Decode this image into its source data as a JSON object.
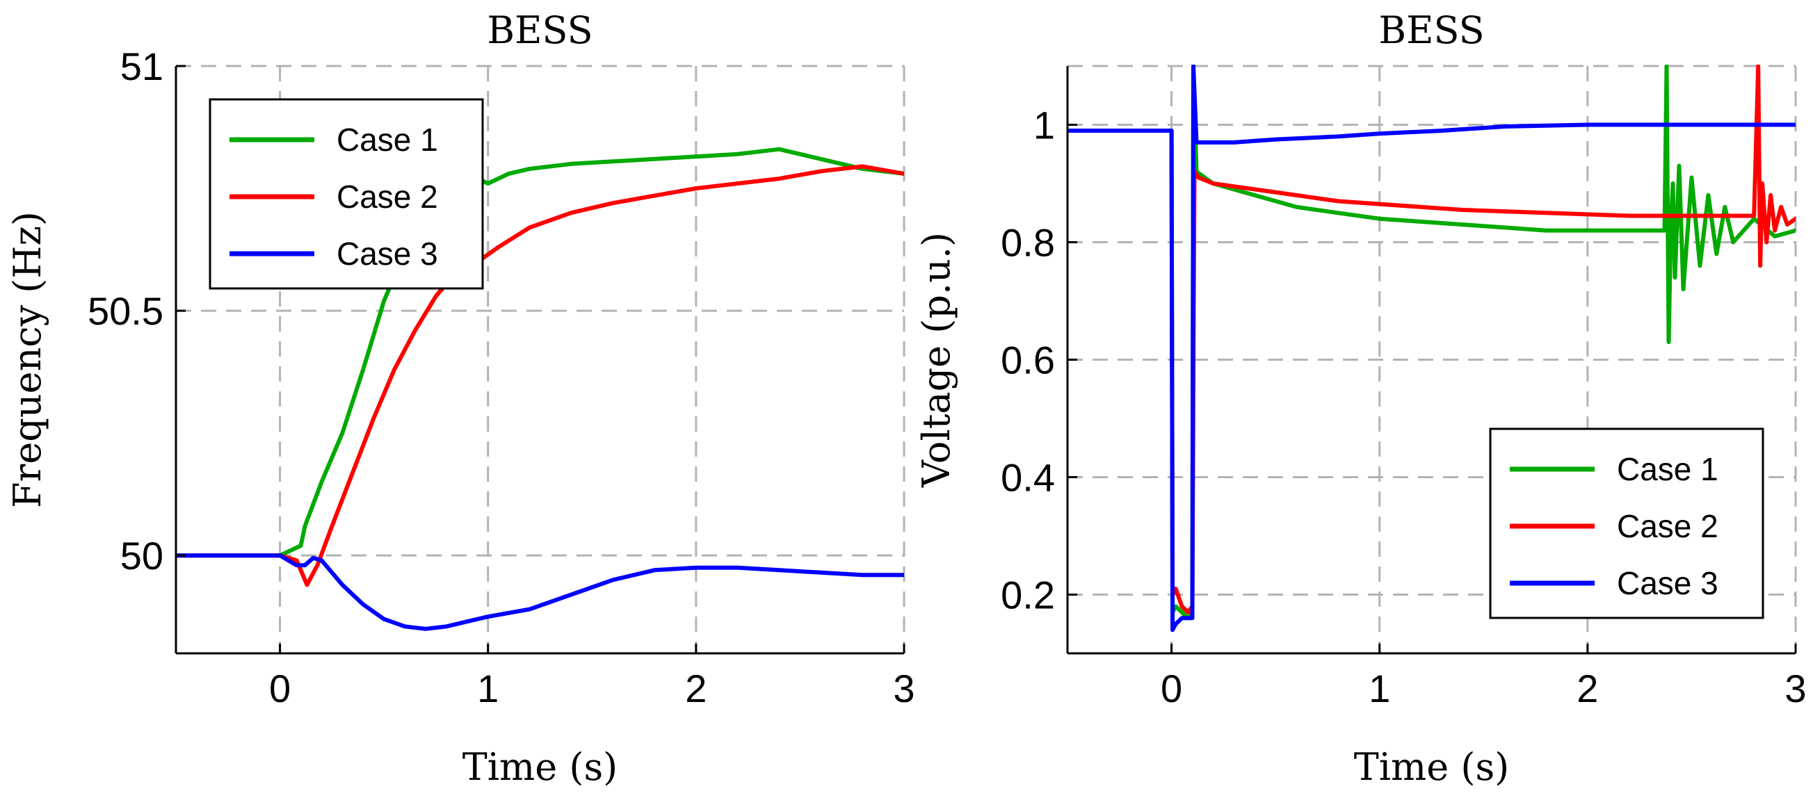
{
  "colors": {
    "case1": "#00aa00",
    "case2": "#ff0000",
    "case3": "#0000ff"
  },
  "chart_data": [
    {
      "type": "line",
      "title": "BESS",
      "xlabel": "Time (s)",
      "ylabel": "Frequency (Hz)",
      "xlim": [
        -0.5,
        3
      ],
      "ylim": [
        49.8,
        51
      ],
      "xticks": [
        0,
        1,
        2,
        3
      ],
      "xtick_labels": [
        "0",
        "1",
        "2",
        "3"
      ],
      "yticks": [
        50,
        50.5,
        51
      ],
      "ytick_labels": [
        "50",
        "50.5",
        "51"
      ],
      "legend_position": "top-left",
      "series": [
        {
          "name": "Case 1",
          "color": "#00aa00",
          "x": [
            -0.5,
            0,
            0.1,
            0.12,
            0.2,
            0.3,
            0.4,
            0.5,
            0.6,
            0.7,
            0.8,
            0.9,
            1.0,
            1.1,
            1.2,
            1.4,
            1.6,
            1.8,
            2.0,
            2.2,
            2.4,
            2.6,
            2.8,
            3.0
          ],
          "y": [
            50,
            50,
            50.02,
            50.06,
            50.15,
            50.25,
            50.38,
            50.52,
            50.62,
            50.7,
            50.75,
            50.78,
            50.76,
            50.78,
            50.79,
            50.8,
            50.805,
            50.81,
            50.815,
            50.82,
            50.83,
            50.81,
            50.79,
            50.78
          ]
        },
        {
          "name": "Case 2",
          "color": "#ff0000",
          "x": [
            -0.5,
            0,
            0.08,
            0.13,
            0.18,
            0.25,
            0.35,
            0.45,
            0.55,
            0.65,
            0.75,
            0.85,
            0.95,
            1.05,
            1.2,
            1.4,
            1.6,
            1.8,
            2.0,
            2.2,
            2.4,
            2.6,
            2.8,
            3.0
          ],
          "y": [
            50,
            50,
            49.99,
            49.94,
            49.98,
            50.06,
            50.17,
            50.28,
            50.38,
            50.46,
            50.53,
            50.58,
            50.6,
            50.63,
            50.67,
            50.7,
            50.72,
            50.735,
            50.75,
            50.76,
            50.77,
            50.785,
            50.795,
            50.78
          ]
        },
        {
          "name": "Case 3",
          "color": "#0000ff",
          "x": [
            -0.5,
            0,
            0.08,
            0.12,
            0.16,
            0.2,
            0.3,
            0.4,
            0.5,
            0.6,
            0.7,
            0.8,
            0.9,
            1.0,
            1.2,
            1.4,
            1.6,
            1.8,
            2.0,
            2.2,
            2.4,
            2.6,
            2.8,
            3.0
          ],
          "y": [
            50,
            50,
            49.98,
            49.98,
            49.995,
            49.99,
            49.94,
            49.9,
            49.87,
            49.855,
            49.85,
            49.855,
            49.865,
            49.875,
            49.89,
            49.92,
            49.95,
            49.97,
            49.975,
            49.975,
            49.97,
            49.965,
            49.96,
            49.96
          ]
        }
      ]
    },
    {
      "type": "line",
      "title": "BESS",
      "xlabel": "Time (s)",
      "ylabel": "Voltage (p.u.)",
      "xlim": [
        -0.5,
        3
      ],
      "ylim": [
        0.1,
        1.1
      ],
      "xticks": [
        0,
        1,
        2,
        3
      ],
      "xtick_labels": [
        "0",
        "1",
        "2",
        "3"
      ],
      "yticks": [
        0.2,
        0.4,
        0.6,
        0.8,
        1.0
      ],
      "ytick_labels": [
        "0.2",
        "0.4",
        "0.6",
        "0.8",
        "1"
      ],
      "legend_position": "bottom-right",
      "series": [
        {
          "name": "Case 1",
          "color": "#00aa00",
          "x": [
            -0.5,
            0,
            0.005,
            0.02,
            0.05,
            0.08,
            0.1,
            0.105,
            0.12,
            0.2,
            0.4,
            0.6,
            0.8,
            1.0,
            1.4,
            1.8,
            2.2,
            2.37,
            2.38,
            2.39,
            2.4,
            2.41,
            2.42,
            2.44,
            2.46,
            2.5,
            2.54,
            2.58,
            2.62,
            2.66,
            2.7,
            2.8,
            2.9,
            3.0
          ],
          "y": [
            0.99,
            0.99,
            0.17,
            0.18,
            0.17,
            0.16,
            0.17,
            1.1,
            0.92,
            0.9,
            0.88,
            0.86,
            0.85,
            0.84,
            0.83,
            0.82,
            0.82,
            0.82,
            1.1,
            0.63,
            0.82,
            0.9,
            0.74,
            0.93,
            0.72,
            0.91,
            0.76,
            0.88,
            0.78,
            0.86,
            0.8,
            0.84,
            0.81,
            0.82
          ]
        },
        {
          "name": "Case 2",
          "color": "#ff0000",
          "x": [
            -0.5,
            0,
            0.005,
            0.02,
            0.05,
            0.08,
            0.1,
            0.11,
            0.13,
            0.2,
            0.4,
            0.6,
            0.8,
            1.0,
            1.4,
            1.8,
            2.2,
            2.6,
            2.8,
            2.82,
            2.83,
            2.84,
            2.86,
            2.88,
            2.9,
            2.93,
            2.96,
            3.0
          ],
          "y": [
            0.99,
            0.99,
            0.2,
            0.21,
            0.18,
            0.17,
            0.18,
            0.92,
            0.91,
            0.9,
            0.89,
            0.88,
            0.87,
            0.865,
            0.855,
            0.85,
            0.845,
            0.845,
            0.845,
            1.1,
            0.76,
            0.9,
            0.8,
            0.88,
            0.82,
            0.86,
            0.83,
            0.84
          ]
        },
        {
          "name": "Case 3",
          "color": "#0000ff",
          "x": [
            -0.5,
            0,
            0.005,
            0.02,
            0.05,
            0.08,
            0.1,
            0.105,
            0.12,
            0.3,
            0.5,
            0.8,
            1.0,
            1.3,
            1.6,
            2.0,
            2.5,
            3.0
          ],
          "y": [
            0.99,
            0.99,
            0.14,
            0.15,
            0.16,
            0.16,
            0.16,
            1.1,
            0.97,
            0.97,
            0.975,
            0.98,
            0.985,
            0.99,
            0.997,
            1.0,
            1.0,
            1.0
          ]
        }
      ]
    }
  ]
}
